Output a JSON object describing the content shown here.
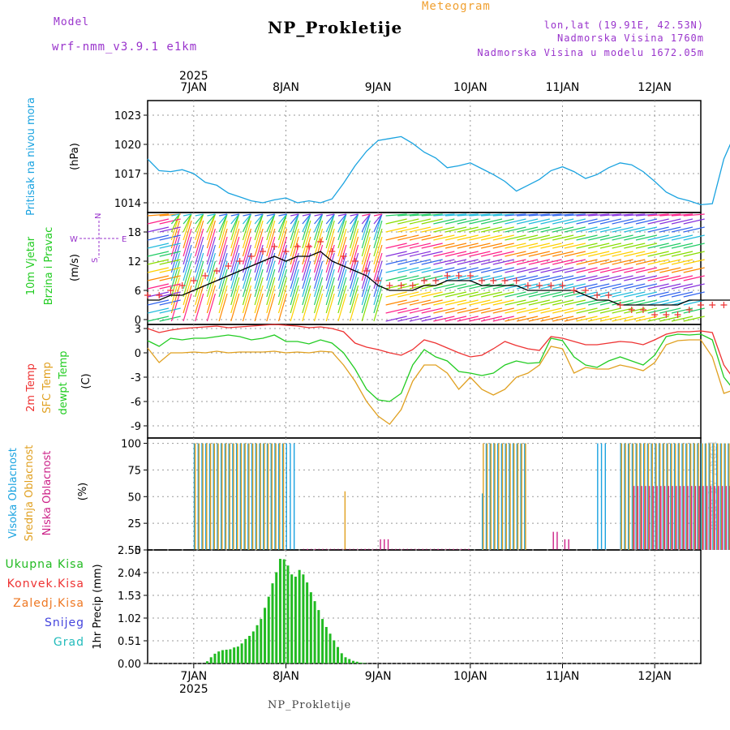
{
  "header": {
    "model_label": "Model",
    "model_name": "wrf-nmm_v3.9.1 e1km",
    "program": "Meteogram",
    "station": "NP_Prokletije",
    "coords": "lon,lat (19.91E, 42.53N)",
    "elevation": "Nadmorska Visina 1760m",
    "model_elevation": "Nadmorska Visina u modelu 1672.05m"
  },
  "footer": {
    "station": "NP_Prokletije",
    "credit": "made by Angel"
  },
  "colors": {
    "pressure": "#1aa3e0",
    "temp2m": "#ee3333",
    "sfc": "#e0a020",
    "dewpt": "#22cc22",
    "cloud_high": "#1aa3e0",
    "cloud_mid": "#e0a020",
    "cloud_low": "#cc2288",
    "precip_total": "#22bb22",
    "precip_conv": "#ee3333",
    "precip_frz": "#ee7722",
    "precip_snow": "#4444dd",
    "precip_grad": "#22bbbb",
    "wind_label": "#22cc22",
    "compass": "#9933cc",
    "header_purple": "#9933cc",
    "header_orange": "#f0a030"
  },
  "chart_data": [
    {
      "type": "line",
      "name": "pressure",
      "ylabel": [
        "Pritisak na nivou mora",
        "(hPa)"
      ],
      "yticks": [
        1014,
        1017,
        1020,
        1023
      ],
      "ylim": [
        1013,
        1024.5
      ],
      "x_start": "6JAN 12:00",
      "x_step_hours": 3,
      "series": [
        {
          "name": "Pritisak na nivou mora",
          "values": [
            1018.5,
            1017.3,
            1017.2,
            1017.4,
            1017.0,
            1016.1,
            1015.8,
            1015.0,
            1014.6,
            1014.2,
            1014.0,
            1014.3,
            1014.5,
            1014.0,
            1014.2,
            1014.0,
            1014.4,
            1016.0,
            1017.8,
            1019.3,
            1020.4,
            1020.6,
            1020.8,
            1020.1,
            1019.2,
            1018.6,
            1017.6,
            1017.8,
            1018.1,
            1017.5,
            1016.9,
            1016.2,
            1015.2,
            1015.8,
            1016.4,
            1017.3,
            1017.7,
            1017.2,
            1016.5,
            1016.9,
            1017.6,
            1018.1,
            1017.9,
            1017.2,
            1016.2,
            1015.1,
            1014.5,
            1014.2,
            1013.8,
            1013.9,
            1018.5,
            1021.2,
            1022.4,
            1023.1,
            1023.9,
            1022.6,
            1021.9,
            1022.5,
            1023.0,
            1023.2,
            1024.0
          ]
        }
      ]
    },
    {
      "type": "line",
      "name": "wind",
      "ylabel": [
        "10m Vjetar",
        "Brzina i Pravac",
        "(m/s)"
      ],
      "compass": {
        "n": "N",
        "s": "S",
        "e": "E",
        "w": "W"
      },
      "yticks": [
        0,
        6,
        12,
        18
      ],
      "ylim": [
        -1,
        22
      ],
      "x_start": "6JAN 12:00",
      "x_step_hours": 3,
      "series": [
        {
          "name": "Brzina",
          "values": [
            4,
            4,
            5,
            5,
            6,
            7,
            8,
            9,
            10,
            11,
            12,
            13,
            12,
            13,
            13,
            14,
            12,
            11,
            10,
            9,
            7,
            6,
            6,
            6,
            7,
            7,
            8,
            8,
            8,
            7,
            7,
            7,
            7,
            6,
            6,
            6,
            6,
            6,
            5,
            4,
            4,
            3,
            3,
            3,
            3,
            3,
            3,
            4,
            4,
            4,
            4,
            4,
            4,
            4,
            4,
            4,
            4,
            4,
            4,
            4,
            4
          ]
        },
        {
          "name": "Udari",
          "values": [
            5,
            5,
            6,
            7,
            8,
            9,
            10,
            11,
            12,
            13,
            14,
            15,
            14,
            15,
            15,
            16,
            14,
            13,
            12,
            10,
            8,
            7,
            7,
            7,
            8,
            8,
            9,
            9,
            9,
            8,
            8,
            8,
            8,
            7,
            7,
            7,
            7,
            6,
            6,
            5,
            5,
            3,
            2,
            2,
            1,
            1,
            1,
            2,
            3,
            3,
            3,
            4,
            4,
            4,
            4,
            4,
            4,
            4,
            4,
            4,
            4
          ]
        }
      ]
    },
    {
      "type": "line",
      "name": "temperature",
      "ylabel": [
        "2m Temp",
        "SFC Temp",
        "dewpt Temp",
        "(C)"
      ],
      "yticks": [
        -9,
        -6,
        -3,
        0,
        3
      ],
      "ylim": [
        -10.5,
        3.5
      ],
      "x_start": "6JAN 12:00",
      "x_step_hours": 3,
      "series": [
        {
          "name": "2m Temp",
          "values": [
            3,
            2.5,
            2.8,
            3,
            3.1,
            3.2,
            3.3,
            3.1,
            3.2,
            3.3,
            3.4,
            3.5,
            3.4,
            3.3,
            3.1,
            3.2,
            3.0,
            2.6,
            1.2,
            0.7,
            0.4,
            0.0,
            -0.3,
            0.4,
            1.6,
            1.2,
            0.6,
            0.0,
            -0.5,
            -0.3,
            0.5,
            1.4,
            0.9,
            0.5,
            0.3,
            2.0,
            1.8,
            1.4,
            1.0,
            1.0,
            1.2,
            1.4,
            1.3,
            1.0,
            1.6,
            2.3,
            2.6,
            2.6,
            2.7,
            2.5,
            -1.5,
            -3.5,
            -5.0,
            -5.8,
            -6.6,
            -6.2,
            -5.4,
            -5.4,
            -4.8,
            -5.0,
            -4.2
          ]
        },
        {
          "name": "SFC Temp",
          "values": [
            0.6,
            -1.2,
            0,
            0,
            0.1,
            0.0,
            0.2,
            0.0,
            0.1,
            0.1,
            0.1,
            0.2,
            0.0,
            0.1,
            0.0,
            0.2,
            0.1,
            -1.5,
            -3.5,
            -6.0,
            -7.8,
            -8.8,
            -7.0,
            -3.5,
            -1.5,
            -1.5,
            -2.5,
            -4.5,
            -3.0,
            -4.5,
            -5.2,
            -4.5,
            -3.0,
            -2.5,
            -1.5,
            0.8,
            0.5,
            -2.5,
            -1.8,
            -2.0,
            -2.0,
            -1.5,
            -1.8,
            -2.2,
            -1.2,
            1.0,
            1.5,
            1.6,
            1.6,
            -0.5,
            -5.0,
            -4.5,
            -4.2,
            -4.5,
            -5.8,
            -4.2,
            -4.2,
            -4.5,
            -4.8,
            -4.5,
            -2.0
          ]
        },
        {
          "name": "dewpt Temp",
          "values": [
            1.5,
            0.8,
            1.8,
            1.6,
            1.8,
            1.8,
            2.0,
            2.2,
            2.0,
            1.6,
            1.8,
            2.2,
            1.4,
            1.4,
            1.1,
            1.6,
            1.2,
            0.0,
            -2.0,
            -4.5,
            -5.8,
            -6.0,
            -5.0,
            -1.5,
            0.4,
            -0.5,
            -1.0,
            -2.3,
            -2.5,
            -2.8,
            -2.5,
            -1.5,
            -1.0,
            -1.3,
            -1.2,
            1.8,
            1.5,
            -0.5,
            -1.5,
            -1.8,
            -1.0,
            -0.5,
            -1.0,
            -1.5,
            -0.3,
            2.0,
            2.3,
            2.2,
            2.3,
            1.6,
            -3.0,
            -4.8,
            -5.8,
            -6.2,
            -7.2,
            -6.8,
            -6.0,
            -6.0,
            -5.0,
            -6.0,
            -7.0
          ]
        }
      ]
    },
    {
      "type": "bar",
      "name": "clouds",
      "ylabel": [
        "Visoka Oblacnost",
        "Srednja Oblacnost",
        "Niska Oblacnost",
        "(%)"
      ],
      "yticks": [
        0,
        25,
        50,
        75,
        100
      ],
      "ylim": [
        0,
        105
      ],
      "series": [
        {
          "name": "Visoka Oblacnost",
          "segments": [
            {
              "from": "6JAN 12:00",
              "to": "7JAN 15:00",
              "value": 100
            },
            {
              "from": "9JAN 15:00",
              "to": "9JAN 16:00",
              "value": 53
            },
            {
              "from": "9JAN 16:00",
              "to": "10JAN 03:00",
              "value": 100
            },
            {
              "from": "10JAN 21:00",
              "to": "11JAN 00:00",
              "value": 100
            },
            {
              "from": "11JAN 03:00",
              "to": "12JAN 12:00",
              "value": 100
            }
          ]
        },
        {
          "name": "Srednja Oblacnost",
          "segments": [
            {
              "from": "6JAN 12:00",
              "to": "7JAN 12:00",
              "value": 100
            },
            {
              "from": "8JAN 03:00",
              "to": "8JAN 03:30",
              "value": 55
            },
            {
              "from": "9JAN 15:00",
              "to": "10JAN 03:00",
              "value": 100
            },
            {
              "from": "11JAN 03:00",
              "to": "12JAN 12:00",
              "value": 100
            }
          ]
        },
        {
          "name": "Niska Oblacnost",
          "segments": [
            {
              "from": "7JAN 16:00",
              "to": "9JAN 12:00",
              "value": 1
            },
            {
              "from": "8JAN 12:00",
              "to": "8JAN 15:00",
              "value": 10
            },
            {
              "from": "10JAN 09:00",
              "to": "10JAN 11:00",
              "value": 17
            },
            {
              "from": "10JAN 12:00",
              "to": "10JAN 14:00",
              "value": 10
            },
            {
              "from": "11JAN 06:00",
              "to": "12JAN 12:00",
              "value": 60
            }
          ]
        }
      ]
    },
    {
      "type": "bar",
      "name": "precipitation",
      "ylabel": [
        "1hr Precip (mm)"
      ],
      "legend": [
        "Ukupna Kisa",
        "Konvek.Kisa",
        "Zaledj.Kisa",
        "Snijeg",
        "Grad"
      ],
      "yticks": [
        0,
        0.51,
        1.02,
        1.53,
        2.04,
        2.55
      ],
      "ylim": [
        0,
        2.55
      ],
      "x_start": "6JAN 12:00",
      "x_step_hours": 1,
      "series": [
        {
          "name": "Ukupna Kisa",
          "values": [
            0,
            0,
            0,
            0,
            0,
            0,
            0,
            0,
            0,
            0,
            0,
            0,
            0,
            0,
            0,
            0.05,
            0.14,
            0.22,
            0.27,
            0.3,
            0.31,
            0.32,
            0.36,
            0.38,
            0.45,
            0.55,
            0.62,
            0.72,
            0.86,
            1.0,
            1.25,
            1.5,
            1.8,
            2.05,
            2.35,
            2.34,
            2.2,
            2.0,
            1.95,
            2.1,
            2.0,
            1.82,
            1.6,
            1.4,
            1.2,
            1.0,
            0.82,
            0.67,
            0.52,
            0.37,
            0.23,
            0.14,
            0.1,
            0.06,
            0.04,
            0.02,
            0.01,
            0,
            0,
            0,
            0,
            0,
            0,
            0,
            0,
            0,
            0,
            0,
            0,
            0,
            0,
            0,
            0,
            0,
            0,
            0,
            0,
            0,
            0,
            0,
            0,
            0,
            0,
            0,
            0,
            0,
            0,
            0,
            0,
            0,
            0,
            0,
            0,
            0,
            0,
            0,
            0,
            0,
            0,
            0,
            0,
            0,
            0,
            0,
            0,
            0,
            0,
            0,
            0,
            0,
            0,
            0,
            0,
            0,
            0,
            0,
            0,
            0,
            0,
            0,
            0,
            0,
            0,
            0,
            0,
            0,
            0,
            0,
            0,
            0,
            0,
            0,
            0,
            0,
            0,
            0,
            0,
            0,
            0,
            0,
            0,
            0,
            0,
            0,
            0,
            0,
            0,
            0,
            0,
            0,
            0,
            0,
            0,
            0.05,
            0.18,
            0.28,
            0.52,
            0.71,
            0.4,
            0.33,
            0.55,
            0.62,
            0.42,
            0.3,
            0.62,
            0.71,
            0.9,
            0.92,
            1.0,
            0.95,
            0.85,
            1.42,
            1.62,
            1.82,
            1.76,
            1.85,
            1.34,
            1.1,
            0.95,
            1.0,
            1.05,
            1.13,
            1.2,
            1.08,
            1.15,
            0.93,
            1.02,
            2.24
          ]
        },
        {
          "name": "Snijeg",
          "values": [
            0,
            0,
            0,
            0,
            0,
            0,
            0,
            0,
            0,
            0,
            0,
            0,
            0,
            0,
            0,
            0,
            0,
            0,
            0,
            0,
            0,
            0,
            0,
            0,
            0,
            0,
            0,
            0,
            0,
            0,
            0,
            0,
            0,
            0,
            0,
            0,
            0,
            0,
            0,
            0,
            0,
            0,
            0,
            0,
            0,
            0,
            0,
            0,
            0,
            0,
            0,
            0,
            0,
            0,
            0,
            0,
            0,
            0,
            0,
            0,
            0,
            0,
            0,
            0,
            0,
            0,
            0,
            0,
            0,
            0,
            0,
            0,
            0,
            0,
            0,
            0,
            0,
            0,
            0,
            0,
            0,
            0,
            0,
            0,
            0,
            0,
            0,
            0,
            0,
            0,
            0,
            0,
            0,
            0,
            0,
            0,
            0,
            0,
            0,
            0,
            0,
            0,
            0,
            0,
            0,
            0,
            0,
            0,
            0,
            0,
            0,
            0,
            0,
            0,
            0,
            0,
            0,
            0,
            0,
            0,
            0,
            0,
            0,
            0,
            0,
            0,
            0,
            0,
            0,
            0,
            0,
            0,
            0,
            0,
            0,
            0,
            0,
            0,
            0,
            0,
            0,
            0,
            0,
            0,
            0,
            0,
            0,
            0,
            0,
            0,
            0,
            0,
            0,
            0,
            0,
            0,
            0,
            0,
            0,
            0,
            0,
            0,
            0,
            0,
            0,
            0,
            0,
            1.42,
            1.62,
            1.82,
            1.76,
            1.85,
            1.34,
            1.1,
            0.95,
            1.0,
            1.05,
            1.13,
            1.2,
            1.08,
            1.15,
            0.93,
            1.02,
            0
          ]
        }
      ]
    }
  ],
  "time_axis": {
    "top_year": "2025",
    "bottom_year": "2025",
    "start": "6JAN 12:00",
    "end": "12JAN 12:00",
    "ticks": [
      {
        "label": "7JAN",
        "hour": 0
      },
      {
        "label": "8JAN",
        "hour": 24
      },
      {
        "label": "9JAN",
        "hour": 48
      },
      {
        "label": "10JAN",
        "hour": 72
      },
      {
        "label": "11JAN",
        "hour": 96
      },
      {
        "label": "12JAN",
        "hour": 120
      }
    ]
  }
}
